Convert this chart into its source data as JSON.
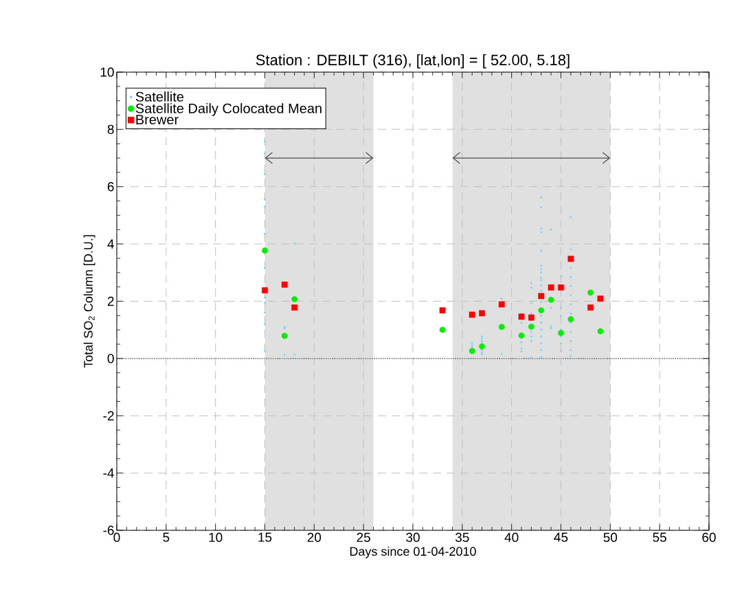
{
  "chart_data": {
    "type": "scatter",
    "title": "Station : DEBILT (316), [lat,lon] = [ 52.00,  5.18]",
    "xlabel": "Days since 01-04-2010",
    "ylabel": "Total SO$_{2}$ Column [D.U.]",
    "xlim": [
      0,
      60
    ],
    "ylim": [
      -6,
      10
    ],
    "xticks": [
      0,
      5,
      10,
      15,
      20,
      25,
      30,
      35,
      40,
      45,
      50,
      55,
      60
    ],
    "yticks": [
      -6,
      -4,
      -2,
      0,
      2,
      4,
      6,
      8,
      10
    ],
    "grid": true,
    "legend": "top left",
    "ref_lines": [
      {
        "axis": "y",
        "value": 0,
        "color": "#000000",
        "line_style": "dotted"
      }
    ],
    "bands": [
      {
        "axis": "x",
        "from": 15,
        "to": 26,
        "color": "#e0e0e0"
      },
      {
        "axis": "x",
        "from": 34,
        "to": 50,
        "color": "#e0e0e0"
      }
    ],
    "series": [
      {
        "name": "Satellite",
        "color": "#87ceeb",
        "marker": "circle",
        "x": [
          15,
          15,
          15,
          15,
          15,
          15,
          15,
          15,
          15,
          15,
          15,
          15,
          17,
          17,
          17,
          18,
          18,
          36,
          36,
          36,
          37,
          37,
          37,
          37,
          37,
          37,
          37,
          39,
          39,
          41,
          41,
          41,
          41,
          41,
          42,
          42,
          42,
          42,
          42,
          42,
          42,
          42,
          42,
          43,
          43,
          43,
          43,
          43,
          43,
          43,
          43,
          43,
          43,
          43,
          43,
          43,
          43,
          43,
          43,
          43,
          43,
          43,
          43,
          43,
          44,
          44,
          44,
          44,
          45,
          45,
          45,
          45,
          45,
          45,
          45,
          46,
          46,
          46,
          46,
          46,
          46,
          46,
          46,
          46,
          46,
          46,
          46,
          46
        ],
        "values": [
          7.58,
          7.16,
          6.44,
          5.56,
          5.31,
          4.35,
          3.17,
          2.13,
          1.95,
          1.61,
          1.19,
          0.25,
          1.1,
          1.05,
          0.13,
          4.02,
          0.13,
          0.54,
          0.45,
          0.37,
          0.77,
          0.69,
          0.61,
          0.53,
          0.29,
          0.21,
          0.14,
          2.09,
          0.15,
          1.57,
          1.25,
          0.57,
          0.35,
          0.25,
          2.63,
          2.47,
          1.94,
          1.57,
          1.33,
          0.93,
          0.77,
          0.61,
          0.03,
          5.63,
          5.28,
          4.54,
          4.4,
          3.76,
          3.24,
          3.12,
          3.0,
          2.81,
          2.73,
          2.55,
          2.37,
          1.97,
          1.49,
          1.25,
          1.01,
          0.77,
          0.53,
          0.29,
          0.03,
          0.05,
          4.51,
          1.77,
          1.11,
          1.05,
          2.86,
          1.77,
          1.49,
          1.01,
          0.77,
          0.53,
          0.25,
          4.94,
          3.81,
          3.17,
          2.85,
          2.53,
          2.21,
          1.89,
          1.57,
          1.25,
          0.93,
          0.61,
          0.29,
          0.09
        ]
      },
      {
        "name": "Satellite Daily Colocated Mean",
        "color": "#00ee00",
        "marker": "circle",
        "x": [
          15,
          17,
          18,
          33,
          36,
          37,
          39,
          41,
          42,
          43,
          44,
          45,
          46,
          48,
          49
        ],
        "values": [
          3.77,
          0.79,
          2.07,
          1.0,
          0.26,
          0.42,
          1.1,
          0.8,
          1.11,
          1.68,
          2.05,
          0.89,
          1.37,
          2.3,
          0.95
        ]
      },
      {
        "name": "Brewer",
        "color": "#ff0000",
        "marker": "square",
        "x": [
          15,
          17,
          18,
          33,
          36,
          37,
          39,
          41,
          42,
          43,
          44,
          45,
          46,
          48,
          49
        ],
        "values": [
          2.38,
          2.58,
          1.78,
          1.68,
          1.53,
          1.58,
          1.89,
          1.46,
          1.43,
          2.18,
          2.48,
          2.48,
          3.48,
          1.78,
          2.09
        ]
      }
    ]
  }
}
